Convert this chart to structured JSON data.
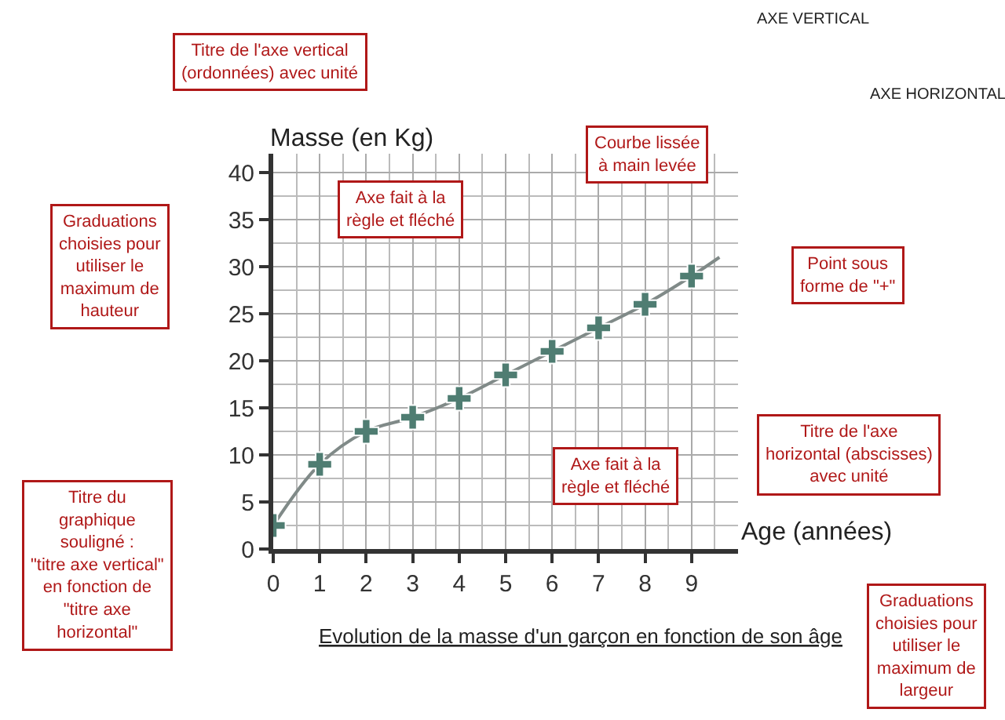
{
  "chart_data": {
    "type": "line",
    "title": "Evolution de la masse d'un garçon en fonction de son âge",
    "xlabel": "Age (années)",
    "ylabel": "Masse (en Kg)",
    "series": [
      {
        "color": "#808a88",
        "marker": "none",
        "x": [
          0,
          1,
          2,
          3,
          4,
          5,
          6,
          7,
          8,
          9,
          9.6
        ],
        "values": [
          2.5,
          9,
          12.5,
          14,
          16,
          18.5,
          21,
          23.5,
          26,
          29,
          31
        ]
      },
      {
        "type": "scatter",
        "color": "#4f7d72",
        "marker": "cross",
        "x": [
          0,
          1,
          2,
          3,
          4,
          5,
          6,
          7,
          8,
          9
        ],
        "values": [
          2.5,
          9,
          12.5,
          14,
          16,
          18.5,
          21,
          23.5,
          26,
          29
        ]
      }
    ],
    "xlim": [
      0,
      10
    ],
    "ylim": [
      0,
      42
    ],
    "xticks": [
      0,
      1,
      2,
      3,
      4,
      5,
      6,
      7,
      8,
      9
    ],
    "yticks": [
      0,
      5,
      10,
      15,
      20,
      25,
      30,
      35,
      40
    ],
    "grid": true,
    "legend": false,
    "annotations": [
      "Titre de l'axe vertical\n(ordonnées) avec unité",
      "Axe fait à la\nrègle et fléché",
      "Courbe lissée\nà main levée",
      "Graduations\nchoisies pour\nutiliser le\nmaximum de\nhauteur",
      "Point sous\nforme de \"+\"",
      "Titre de l'axe\nhorizontal (abscisses)\navec unité",
      "Axe fait à la\nrègle et fléché",
      "Titre du\ngraphique\nsouligné :\n\"titre axe vertical\"\nen fonction de\n\"titre axe\nhorizontal\"",
      "Graduations\nchoisies pour\nutiliser le\nmaximum de\nlargeur",
      "AXE VERTICAL",
      "AXE HORIZONTAL"
    ]
  }
}
